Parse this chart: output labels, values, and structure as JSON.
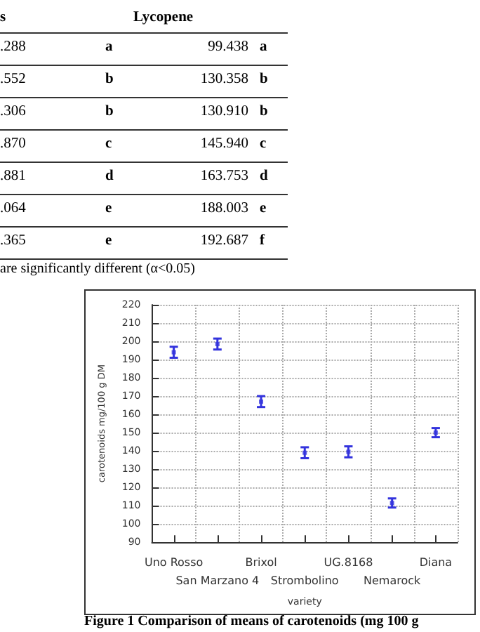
{
  "chart_data": {
    "type": "scatter",
    "xlabel": "variety",
    "ylabel": "carotenoids mg/100 g DM",
    "categories": [
      "Uno Rosso",
      "San Marzano 4",
      "Brixol",
      "Strombolino",
      "UG.8168",
      "Nemarock",
      "Diana"
    ],
    "values": [
      194,
      198.5,
      167,
      139,
      139.5,
      111.5,
      150
    ],
    "errors": [
      3,
      3,
      3,
      3,
      3,
      2.5,
      2.5
    ],
    "color": "#3333dd",
    "marker": "square",
    "grid": true,
    "ylim": [
      90,
      220
    ],
    "yticks": [
      90,
      100,
      110,
      120,
      130,
      140,
      150,
      160,
      170,
      180,
      190,
      200,
      210,
      220
    ],
    "annotations": [
      "s",
      "Lycopene",
      ".288",
      "a",
      "99.438",
      "a",
      ".552",
      "b",
      "130.358",
      "b",
      ".306",
      "b",
      "130.910",
      "b",
      ".870",
      "c",
      "145.940",
      "c",
      ".881",
      "d",
      "163.753",
      "d",
      ".064",
      "e",
      "188.003",
      "e",
      ".365",
      "e",
      "192.687",
      "f",
      "are significantly different (α<0.05)",
      "Figure 1 Comparison of means of carotenoids (mg 100 g"
    ]
  }
}
